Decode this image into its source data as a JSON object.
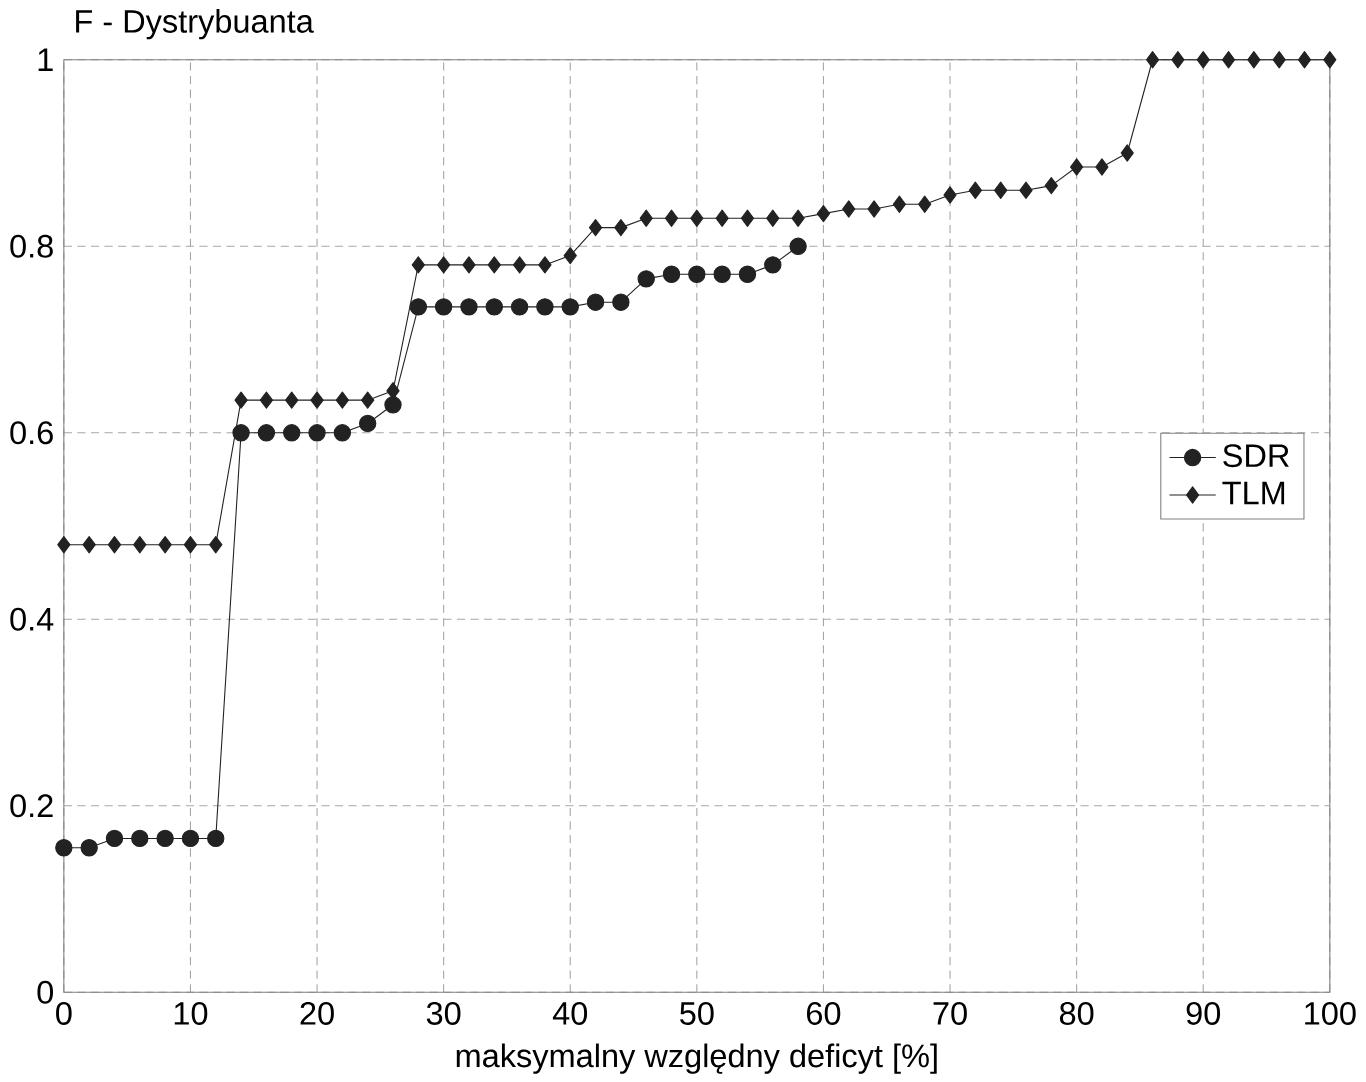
{
  "chart_data": {
    "type": "line",
    "ylabel": "F - Dystrybuanta",
    "xlabel": "maksymalny względny deficyt  [%]",
    "x": [
      0,
      2,
      4,
      6,
      8,
      10,
      12,
      14,
      16,
      18,
      20,
      22,
      24,
      26,
      28,
      30,
      32,
      34,
      36,
      38,
      40,
      42,
      44,
      46,
      48,
      50,
      52,
      54,
      56,
      58,
      60,
      62,
      64,
      66,
      68,
      70,
      72,
      74,
      76,
      78,
      80,
      82,
      84,
      86,
      88,
      90,
      92,
      94,
      96,
      98,
      100
    ],
    "series": [
      {
        "name": "SDR",
        "color": "#222222",
        "marker": "circle",
        "values": [
          0.155,
          0.155,
          0.165,
          0.165,
          0.165,
          0.165,
          0.165,
          0.6,
          0.6,
          0.6,
          0.6,
          0.6,
          0.61,
          0.63,
          0.735,
          0.735,
          0.735,
          0.735,
          0.735,
          0.735,
          0.735,
          0.74,
          0.74,
          0.765,
          0.77,
          0.77,
          0.77,
          0.77,
          0.78,
          0.8,
          null,
          null,
          null,
          null,
          null,
          null,
          null,
          null,
          null,
          null,
          null,
          null,
          null,
          null,
          null,
          null,
          null,
          null,
          null,
          null,
          null
        ]
      },
      {
        "name": "TLM",
        "color": "#222222",
        "marker": "diamond",
        "values": [
          0.48,
          0.48,
          0.48,
          0.48,
          0.48,
          0.48,
          0.48,
          0.635,
          0.635,
          0.635,
          0.635,
          0.635,
          0.635,
          0.645,
          0.78,
          0.78,
          0.78,
          0.78,
          0.78,
          0.78,
          0.79,
          0.82,
          0.82,
          0.83,
          0.83,
          0.83,
          0.83,
          0.83,
          0.83,
          0.83,
          0.835,
          0.84,
          0.84,
          0.845,
          0.845,
          0.855,
          0.86,
          0.86,
          0.86,
          0.865,
          0.885,
          0.885,
          0.9,
          1,
          1,
          1,
          1,
          1,
          1,
          1,
          1
        ]
      }
    ],
    "xlim": [
      0,
      100
    ],
    "xticks": [
      0,
      10,
      20,
      30,
      40,
      50,
      60,
      70,
      80,
      90,
      100
    ],
    "ylim": [
      0,
      1
    ],
    "yticks": [
      0,
      0.2,
      0.4,
      0.6,
      0.8,
      1
    ],
    "grid": true,
    "legend": "right",
    "line_style": "solid"
  }
}
